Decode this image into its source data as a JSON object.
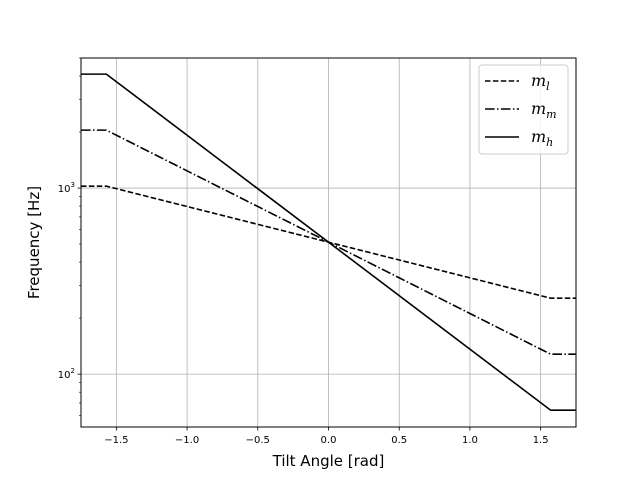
{
  "chart_data": {
    "type": "line",
    "title": "",
    "xlabel": "Tilt Angle [rad]",
    "ylabel": "Frequency [Hz]",
    "xlim": [
      -1.75,
      1.75
    ],
    "ylim": [
      52,
      5000
    ],
    "yscale": "log",
    "grid": true,
    "legend_position": "top-right",
    "x_ticks": [
      -1.5,
      -1.0,
      -0.5,
      0.0,
      0.5,
      1.0,
      1.5
    ],
    "x_tick_labels": [
      "−1.5",
      "−1.0",
      "−0.5",
      "0.0",
      "0.5",
      "1.0",
      "1.5"
    ],
    "y_ticks": [
      100,
      1000
    ],
    "y_tick_labels": [
      {
        "base": "10",
        "exp": "2"
      },
      {
        "base": "10",
        "exp": "3"
      }
    ],
    "series": [
      {
        "name": "m_l",
        "legend_base": "m",
        "legend_sub": "l",
        "dash": "dashed",
        "color": "#000000",
        "x": [
          -1.75,
          -1.5708,
          1.5708,
          1.75
        ],
        "y": [
          1024,
          1024,
          256,
          256
        ]
      },
      {
        "name": "m_m",
        "legend_base": "m",
        "legend_sub": "m",
        "dash": "dashdot",
        "color": "#000000",
        "x": [
          -1.75,
          -1.5708,
          1.5708,
          1.75
        ],
        "y": [
          2048,
          2048,
          128,
          128
        ]
      },
      {
        "name": "m_h",
        "legend_base": "m",
        "legend_sub": "h",
        "dash": "solid",
        "color": "#000000",
        "x": [
          -1.75,
          -1.5708,
          1.5708,
          1.75
        ],
        "y": [
          4096,
          4096,
          64,
          64
        ]
      }
    ]
  }
}
